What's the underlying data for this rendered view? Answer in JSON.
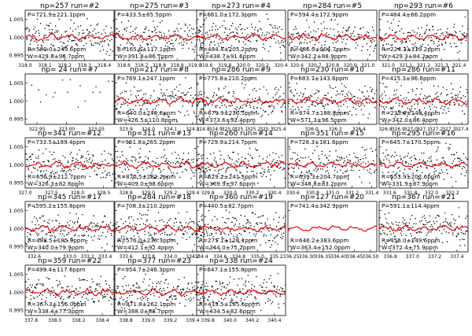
{
  "chart_data": [
    {
      "type": "scatter",
      "header": "np=257    run=#2",
      "lines": [
        "P=721.9±221.1ppm",
        "R=580.0±249.6ppm",
        "W=429.8±98.7ppm"
      ],
      "y_ticks": [
        "1.005",
        "1.000",
        "0.995"
      ],
      "x_ticks": [
        "318.0",
        "318.1",
        "318.2",
        "318.3",
        "318.4"
      ],
      "xlim": [
        318.0,
        318.45
      ],
      "ylim": [
        0.9935,
        1.0075
      ]
    },
    {
      "type": "scatter",
      "header": "np=275    run=#3",
      "lines": [
        "P=433.5±65.5ppm",
        "R=165.6±117.1ppm",
        "W=391.8±86.7ppm"
      ],
      "x_ticks": [
        "318.6",
        "318.7",
        "318.8",
        "318.9",
        "319.0"
      ],
      "xlim": [
        318.55,
        319.05
      ],
      "ylim": [
        0.9935,
        1.0075
      ]
    },
    {
      "type": "scatter",
      "header": "np=273    run=#4",
      "lines": [
        "P=661.0±172.3ppm",
        "R=484.4±205.2ppm",
        "W=438.7±91.6ppm"
      ],
      "x_ticks": [
        "319.6",
        "319.8",
        "320.0",
        "320.2",
        "320.4"
      ],
      "xlim": [
        319.5,
        320.45
      ],
      "ylim": [
        0.9935,
        1.0075
      ]
    },
    {
      "type": "scatter",
      "header": "np=284    run=#5",
      "lines": [
        "P=594.4±172.9ppm",
        "R=486.0±204.7ppm",
        "W=342.2±88.9ppm"
      ],
      "x_ticks": [
        "320.6",
        "320.7",
        "320.8",
        "320.9",
        "321.0"
      ],
      "xlim": [
        320.55,
        321.05
      ],
      "ylim": [
        0.9935,
        1.0075
      ]
    },
    {
      "type": "scatter",
      "header": "np=293    run=#6",
      "lines": [
        "P=484.4±66.2ppm",
        "R=224.3±119.2ppm",
        "W=429.3±84.2ppm"
      ],
      "x_ticks": [
        "321.0",
        "321.1",
        "321.2",
        "321.3",
        "321.4"
      ],
      "xlim": [
        320.95,
        321.45
      ],
      "ylim": [
        0.9935,
        1.0075
      ]
    },
    {
      "type": "scatter",
      "header": "np= 24    run=#7",
      "lines": [],
      "y_ticks": [
        "1.005",
        "1.000",
        "0.995"
      ],
      "x_ticks": [
        "322.95",
        "323.00",
        "323.05"
      ],
      "xlim": [
        322.93,
        323.08
      ],
      "ylim": [
        0.9935,
        1.0075
      ],
      "sparse": true
    },
    {
      "type": "scatter",
      "header": "np=217    run=#8",
      "lines": [
        "P=769.1±247.1ppm",
        "R=640.0±278.6ppm",
        "W=426.5±110.8ppm"
      ],
      "x_ticks": [
        "323.9",
        "324.0",
        "324.1",
        "324.2"
      ],
      "xlim": [
        323.85,
        324.25
      ],
      "ylim": [
        0.9935,
        1.0075
      ]
    },
    {
      "type": "scatter",
      "header": "np=286    run=#9",
      "lines": [
        "P=775.8±210.2ppm",
        "R=679.9±236.5ppm",
        "W=373.6±92.4ppm"
      ],
      "x_ticks": [
        "324.8",
        "324.9",
        "325.0",
        "325.1",
        "325.2",
        "325.3",
        "325.4"
      ],
      "xlim": [
        324.75,
        325.45
      ],
      "ylim": [
        0.9935,
        1.0075
      ]
    },
    {
      "type": "scatter",
      "header": "np=230    run=#10",
      "lines": [
        "P=683.7±143.6ppm",
        "R=374.7±188.8ppm",
        "W=571.3±96.5ppm"
      ],
      "x_ticks": [
        "326.0",
        "326.2",
        "326.4"
      ],
      "xlim": [
        325.8,
        326.55
      ],
      "ylim": [
        0.9935,
        1.0075
      ]
    },
    {
      "type": "scatter",
      "header": "np=286    run=#11",
      "lines": [
        "P=415.3±96.6ppm",
        "R=235.6±148.4ppm",
        "W=342.0±86.4ppm"
      ],
      "x_ticks": [
        "326.8",
        "326.9",
        "327.0",
        "327.1",
        "327.2",
        "327.3",
        "327.4"
      ],
      "xlim": [
        326.75,
        327.45
      ],
      "ylim": [
        0.9935,
        1.0075
      ]
    },
    {
      "type": "scatter",
      "header": "np=341    run=#12",
      "lines": [
        "P=733.5±189.4ppm",
        "R=656.9±212.7ppm",
        "W=326.3±82.6ppm"
      ],
      "y_ticks": [
        "1.005",
        "1.000",
        "0.995"
      ],
      "x_ticks": [
        "327.0",
        "327.5",
        "328.0",
        "328.5"
      ],
      "xlim": [
        327.0,
        328.7
      ],
      "ylim": [
        0.9935,
        1.0075
      ]
    },
    {
      "type": "scatter",
      "header": "np=311    run=#13",
      "lines": [
        "P=961.8±265.2ppm",
        "R=870.5±282.2ppm",
        "W=409.0±98.6ppm"
      ],
      "x_ticks": [
        "328.8",
        "329.0",
        "329.2",
        "329.4"
      ],
      "xlim": [
        328.7,
        329.5
      ],
      "ylim": [
        0.9935,
        1.0075
      ]
    },
    {
      "type": "scatter",
      "header": "np=260    run=#14",
      "lines": [
        "P=729.9±214.7ppm",
        "R=629.2±241.5ppm",
        "W=369.9±97.6ppm"
      ],
      "x_ticks": [
        "329.8",
        "330.0",
        "330.2",
        "330.4"
      ],
      "xlim": [
        329.7,
        330.5
      ],
      "ylim": [
        0.9935,
        1.0075
      ]
    },
    {
      "type": "scatter",
      "header": "np=351    run=#15",
      "lines": [
        "P=728.3±181.6ppm",
        "R=639.3±204.7ppm",
        "W=348.8±83.2ppm"
      ],
      "x_ticks": [
        "330.6",
        "330.8",
        "331.0",
        "331.2",
        "331.4"
      ],
      "xlim": [
        330.55,
        331.45
      ],
      "ylim": [
        0.9935,
        1.0075
      ]
    },
    {
      "type": "scatter",
      "header": "np=295    run=#16",
      "lines": [
        "P=645.7±170.5ppm",
        "R=553.9±202.6ppm",
        "W=331.9±87.9ppm"
      ],
      "x_ticks": [
        "331.6",
        "331.8",
        "332.0",
        "332.2"
      ],
      "xlim": [
        331.5,
        332.35
      ],
      "ylim": [
        0.9935,
        1.0075
      ]
    },
    {
      "type": "scatter",
      "header": "np=345    run=#17",
      "lines": [
        "P=595.2±155.8ppm",
        "R=488.5±185.9ppm",
        "W=340.0±79.9ppm"
      ],
      "y_ticks": [
        "1.005",
        "1.000",
        "0.995"
      ],
      "x_ticks": [
        "332.6",
        "333.0",
        "333.2",
        "333.4"
      ],
      "xlim": [
        332.5,
        333.5
      ],
      "ylim": [
        0.9935,
        1.0075
      ]
    },
    {
      "type": "scatter",
      "header": "np=284    run=#18",
      "lines": [
        "P=708.3±210.2ppm",
        "R=576.0±236.3ppm",
        "W=412.1±92.4ppm"
      ],
      "x_ticks": [
        "333.6",
        "333.8",
        "334.0",
        "334.2"
      ],
      "xlim": [
        333.5,
        334.3
      ],
      "ylim": [
        0.9935,
        1.0075
      ]
    },
    {
      "type": "scatter",
      "header": "np=360    run=#19",
      "lines": [
        "P=440.5±82.7ppm",
        "R=275.1±128.1ppm",
        "W=344.0±75.2ppm"
      ],
      "x_ticks": [
        "334.4",
        "334.6",
        "334.8",
        "335.0",
        "335.2"
      ],
      "xlim": [
        334.35,
        335.3
      ],
      "ylim": [
        0.9935,
        1.0075
      ]
    },
    {
      "type": "scatter",
      "header": "np=127    run=#20",
      "lines": [
        "P=741.4±342.9ppm",
        "R=646.2±383.6ppm",
        "W=363.4±152.0ppm"
      ],
      "x_ticks": [
        "336.25",
        "336.30",
        "336.35",
        "336.40",
        "336.45",
        "336.50"
      ],
      "xlim": [
        336.24,
        336.52
      ],
      "ylim": [
        0.9935,
        1.0075
      ],
      "line_only": true
    },
    {
      "type": "scatter",
      "header": "np=367    run=#21",
      "lines": [
        "P=591.1±114.4ppm",
        "R=456.0±149.6ppm",
        "W=372.4±75.9ppm"
      ],
      "x_ticks": [
        "336.8",
        "337.0",
        "337.2",
        "337.4"
      ],
      "xlim": [
        336.7,
        337.5
      ],
      "ylim": [
        0.9935,
        1.0075
      ]
    },
    {
      "type": "scatter",
      "header": "np=359    run=#22",
      "lines": [
        "P=499.4±117.6ppm",
        "R=367.3±156.0ppm",
        "W=338.4±77.3ppm"
      ],
      "y_ticks": [
        "1.005",
        "1.000",
        "0.995"
      ],
      "x_ticks": [
        "337.8",
        "338.0",
        "338.2",
        "338.4"
      ],
      "xlim": [
        337.75,
        338.5
      ],
      "ylim": [
        0.9935,
        1.0075
      ]
    },
    {
      "type": "scatter",
      "header": "np=377    run=#23",
      "lines": [
        "P=954.7±246.3ppm",
        "R=871.8±262.1ppm",
        "W=388.0±88.7ppm"
      ],
      "x_ticks": [
        "338.8",
        "339.0",
        "339.2",
        "339.4"
      ],
      "xlim": [
        338.7,
        339.5
      ],
      "ylim": [
        0.9935,
        1.0075
      ]
    },
    {
      "type": "scatter",
      "header": "np=338    run=#24",
      "lines": [
        "P=647.1±155.8ppm",
        "R=479.5±185.6ppm",
        "W=434.5±82.6ppm"
      ],
      "x_ticks": [
        "339.8",
        "340.0",
        "340.2",
        "340.4"
      ],
      "xlim": [
        339.7,
        340.5
      ],
      "ylim": [
        0.9935,
        1.0075
      ]
    }
  ]
}
